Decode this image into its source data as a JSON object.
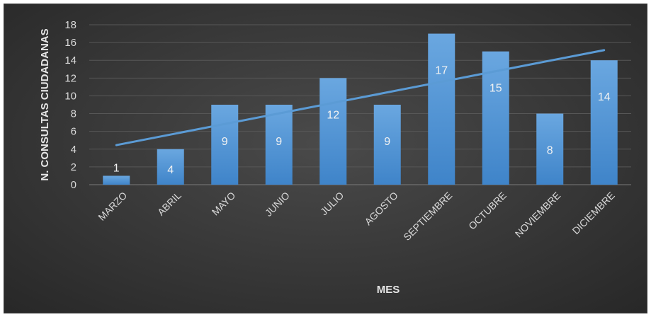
{
  "chart_data": {
    "type": "bar",
    "title": "",
    "xlabel": "MES",
    "ylabel": "N. CONSULTAS CIUDADANAS",
    "categories": [
      "MARZO",
      "ABRIL",
      "MAYO",
      "JUNIO",
      "JULIO",
      "AGOSTO",
      "SEPTIEMBRE",
      "OCTUBRE",
      "NOVIEMBRE",
      "DICIEMBRE"
    ],
    "values": [
      1,
      4,
      9,
      9,
      12,
      9,
      17,
      15,
      8,
      14
    ],
    "yticks": [
      "0",
      "2",
      "4",
      "6",
      "8",
      "10",
      "12",
      "14",
      "16",
      "18"
    ],
    "ylim": [
      0,
      18
    ],
    "trendline": "linear",
    "grid": true,
    "legend": "none",
    "colors": {
      "bar": "#5b9bd5",
      "trend": "#5b9bd5",
      "background": "#404040"
    }
  }
}
